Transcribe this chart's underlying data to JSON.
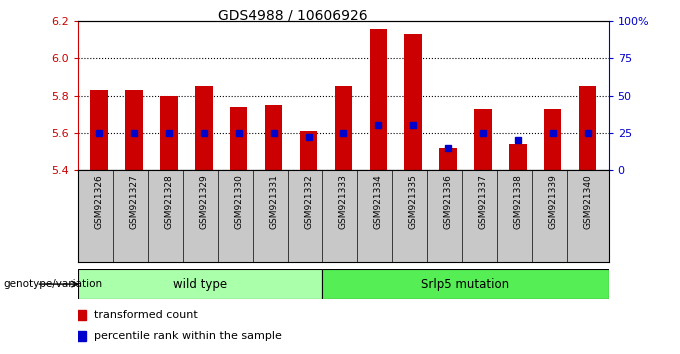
{
  "title": "GDS4988 / 10606926",
  "samples": [
    "GSM921326",
    "GSM921327",
    "GSM921328",
    "GSM921329",
    "GSM921330",
    "GSM921331",
    "GSM921332",
    "GSM921333",
    "GSM921334",
    "GSM921335",
    "GSM921336",
    "GSM921337",
    "GSM921338",
    "GSM921339",
    "GSM921340"
  ],
  "transformed_count": [
    5.83,
    5.83,
    5.8,
    5.85,
    5.74,
    5.75,
    5.61,
    5.85,
    6.16,
    6.13,
    5.52,
    5.73,
    5.54,
    5.73,
    5.85
  ],
  "percentile_rank": [
    25,
    25,
    25,
    25,
    25,
    25,
    22,
    25,
    30,
    30,
    15,
    25,
    20,
    25,
    25
  ],
  "ymin": 5.4,
  "ymax": 6.2,
  "yticks": [
    5.4,
    5.6,
    5.8,
    6.0,
    6.2
  ],
  "right_yticks": [
    0,
    25,
    50,
    75,
    100
  ],
  "right_yticklabels": [
    "0",
    "25",
    "50",
    "75",
    "100%"
  ],
  "grid_lines": [
    5.6,
    5.8,
    6.0
  ],
  "bar_color": "#cc0000",
  "marker_color": "#0000cc",
  "bar_bottom": 5.4,
  "wild_type_samples": 7,
  "wild_type_label": "wild type",
  "mutation_label": "Srlp5 mutation",
  "genotype_label": "genotype/variation",
  "legend_bar_label": "transformed count",
  "legend_marker_label": "percentile rank within the sample",
  "group_color_wt": "#aaffaa",
  "group_color_mut": "#55ee55",
  "xlabel_color": "#cc0000",
  "ylabel_right_color": "#0000cc",
  "xtick_bg_color": "#c8c8c8"
}
